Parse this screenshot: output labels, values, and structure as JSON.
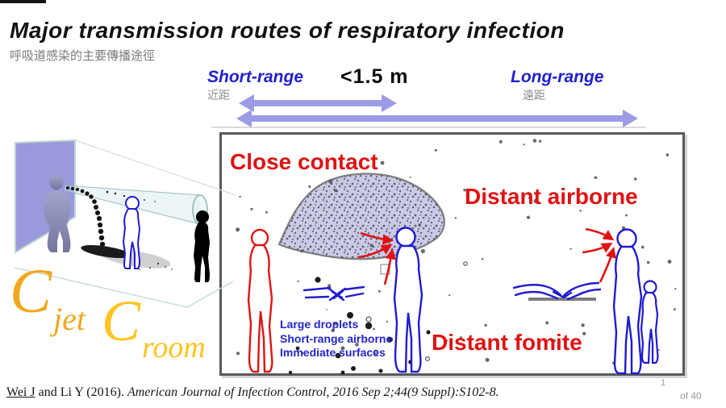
{
  "slide": {
    "title": "Major transmission routes of respiratory infection",
    "subtitle_zh": "呼吸道感染的主要傳播途徑"
  },
  "range_bar": {
    "short_range_label": "Short-range",
    "short_range_zh": "近距",
    "distance_label": "<1.5 m",
    "long_range_label": "Long-range",
    "long_range_zh": "遠距"
  },
  "diagram": {
    "close_contact_label": "Close contact",
    "distant_airborne_label": "Distant airborne",
    "distant_fomite_label": "Distant fomite",
    "mechanisms": [
      "Large droplets",
      "Short-range airborne",
      "Immediate surfaces"
    ]
  },
  "equations": {
    "c_jet": {
      "base": "C",
      "sub": "jet"
    },
    "c_room": {
      "base": "C",
      "sub": "room"
    }
  },
  "footer": {
    "citation_authors": "Wei J",
    "citation_mid": " and Li Y (2016). ",
    "citation_source": "American Journal of Infection Control, 2016 Sep 2;44(9 Suppl):S102-8.",
    "page_number": "1",
    "page_total": "of 40"
  },
  "colors": {
    "label_red": "#e01212",
    "label_blue": "#2121cc",
    "figure_blue": "#1f1bd0",
    "figure_red": "#dd1515",
    "range_arrow": "#9c9ce6",
    "plume_fill": "#c9cae8",
    "wall_purple": "#9a99dc",
    "c_jet_orange": "#f2a71f",
    "c_room_gold": "#ffc41f"
  }
}
